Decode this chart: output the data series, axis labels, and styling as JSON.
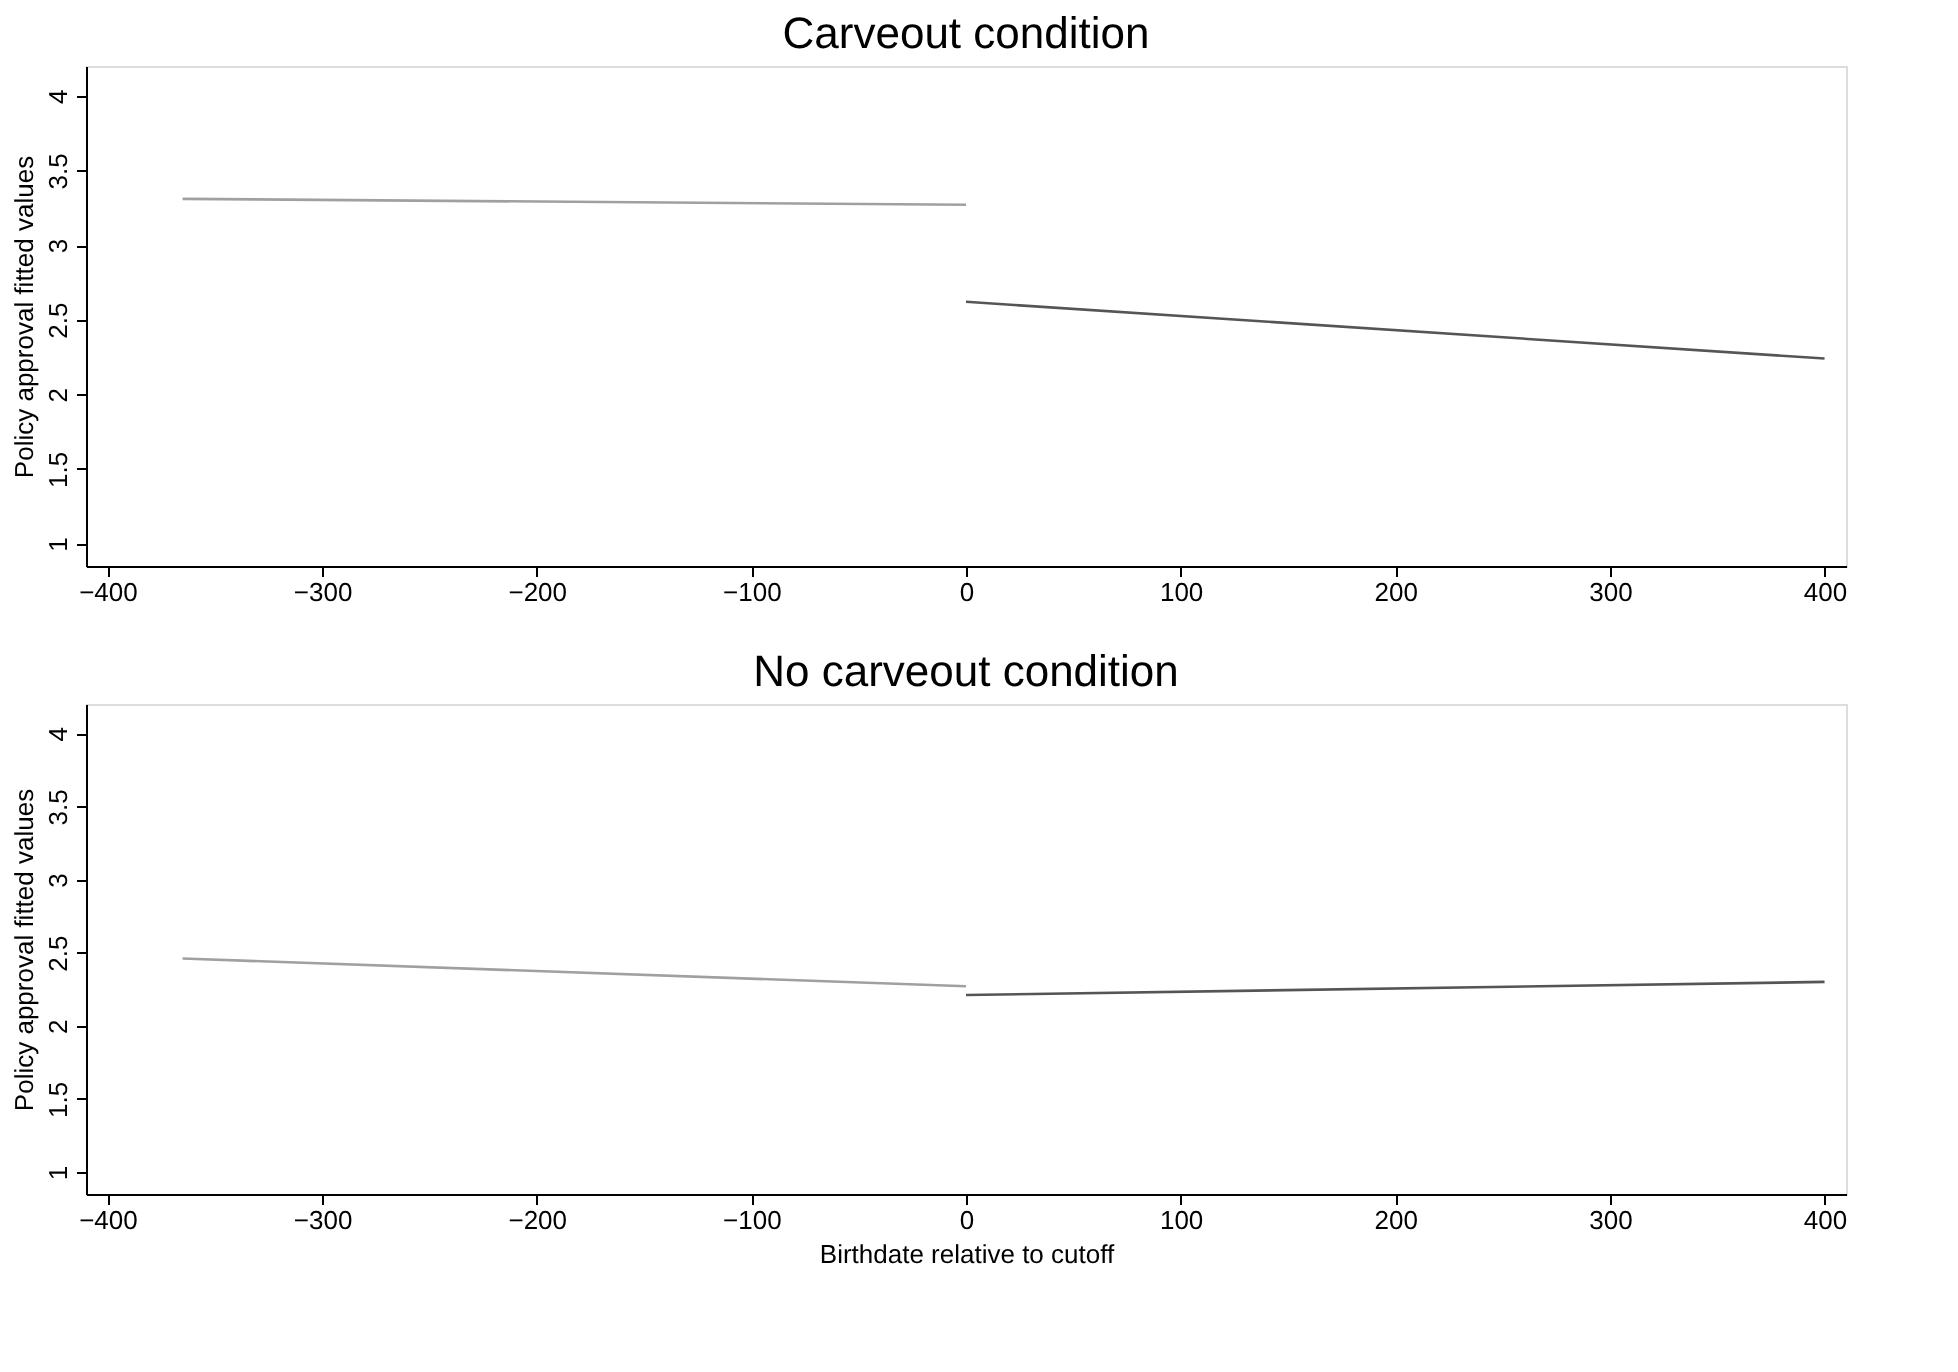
{
  "chart_data": [
    {
      "type": "line",
      "title": "Carveout condition",
      "ylabel": "Policy approval fitted values",
      "xlim": [
        -410,
        410
      ],
      "xticks": [
        -400,
        -300,
        -200,
        -100,
        0,
        100,
        200,
        300,
        400
      ],
      "ylim": [
        0.85,
        4.2
      ],
      "yticks": [
        1,
        1.5,
        2,
        2.5,
        3,
        3.5,
        4
      ],
      "grid": false,
      "marker": "none",
      "line_style": "solid",
      "tick_labels": "xy",
      "series": [
        {
          "color": "#a0a0a0",
          "x": [
            -365,
            0
          ],
          "values": [
            3.31,
            3.27
          ]
        },
        {
          "color": "#555555",
          "x": [
            0,
            400
          ],
          "values": [
            2.62,
            2.24
          ]
        }
      ]
    },
    {
      "type": "line",
      "title": "No carveout condition",
      "xlabel": "Birthdate relative to cutoff",
      "ylabel": "Policy approval fitted values",
      "xlim": [
        -410,
        410
      ],
      "xticks": [
        -400,
        -300,
        -200,
        -100,
        0,
        100,
        200,
        300,
        400
      ],
      "ylim": [
        0.85,
        4.2
      ],
      "yticks": [
        1,
        1.5,
        2,
        2.5,
        3,
        3.5,
        4
      ],
      "grid": false,
      "marker": "none",
      "line_style": "solid",
      "tick_labels": "xy",
      "series": [
        {
          "color": "#a0a0a0",
          "x": [
            -365,
            0
          ],
          "values": [
            2.46,
            2.27
          ]
        },
        {
          "color": "#555555",
          "x": [
            0,
            400
          ],
          "values": [
            2.21,
            2.3
          ]
        }
      ]
    }
  ]
}
